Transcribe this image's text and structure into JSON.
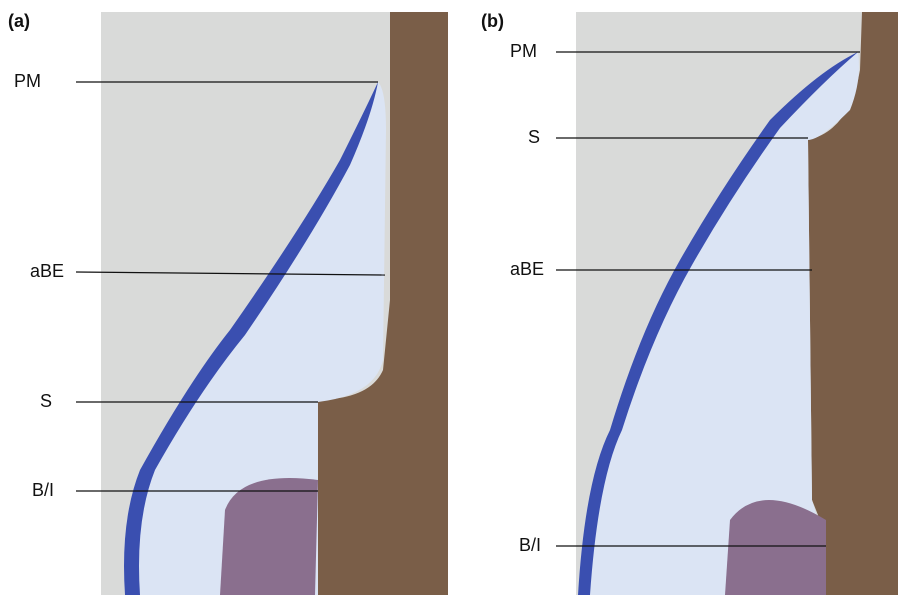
{
  "panels": [
    {
      "label": "(a)",
      "annotations": [
        "PM",
        "aBE",
        "S",
        "B/I"
      ]
    },
    {
      "label": "(b)",
      "annotations": [
        "PM",
        "S",
        "aBE",
        "B/I"
      ]
    }
  ]
}
